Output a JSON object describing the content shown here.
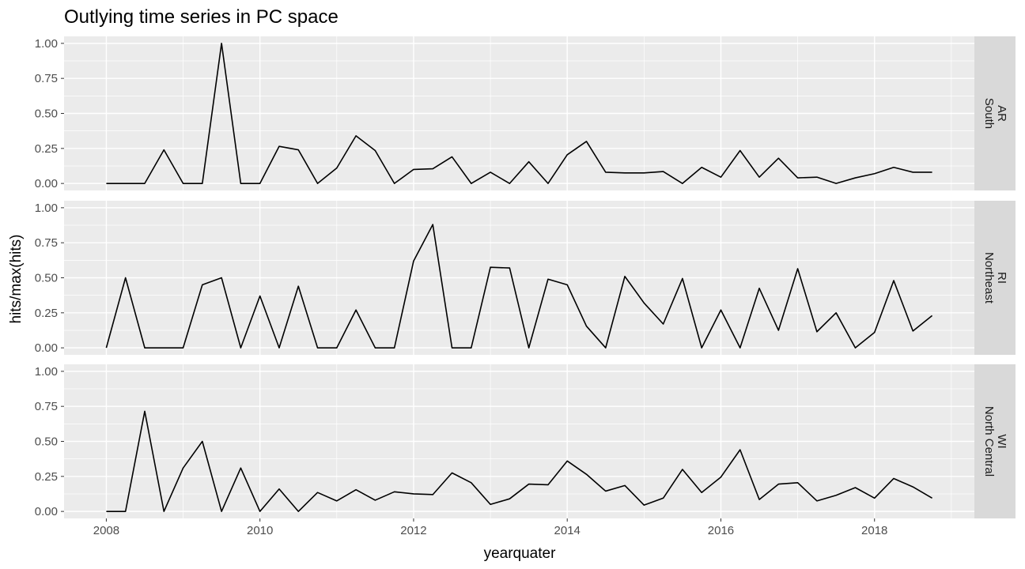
{
  "chart_data": {
    "type": "line",
    "title": "Outlying time series in PC space",
    "xlabel": "yearquater",
    "ylabel": "hits/max(hits)",
    "xlim": [
      2007.45,
      2019.3
    ],
    "ylim": [
      -0.05,
      1.05
    ],
    "x_ticks": [
      2008,
      2010,
      2012,
      2014,
      2016,
      2018
    ],
    "y_ticks": [
      0,
      0.25,
      0.5,
      0.75,
      1
    ],
    "y_tick_labels": [
      "0.00",
      "0.25",
      "0.50",
      "0.75",
      "1.00"
    ],
    "grid": true,
    "x": [
      2008,
      2008.25,
      2008.5,
      2008.75,
      2009,
      2009.25,
      2009.5,
      2009.75,
      2010,
      2010.25,
      2010.5,
      2010.75,
      2011,
      2011.25,
      2011.5,
      2011.75,
      2012,
      2012.25,
      2012.5,
      2012.75,
      2013,
      2013.25,
      2013.5,
      2013.75,
      2014,
      2014.25,
      2014.5,
      2014.75,
      2015,
      2015.25,
      2015.5,
      2015.75,
      2016,
      2016.25,
      2016.5,
      2016.75,
      2017,
      2017.25,
      2017.5,
      2017.75,
      2018,
      2018.25,
      2018.5,
      2018.75
    ],
    "panels": [
      {
        "strip": [
          "AR",
          "South"
        ],
        "values": [
          0,
          0,
          0,
          0.24,
          0,
          0,
          1.0,
          0,
          0,
          0.265,
          0.24,
          0,
          0.11,
          0.34,
          0.235,
          0,
          0.1,
          0.105,
          0.19,
          0,
          0.08,
          0,
          0.155,
          0,
          0.205,
          0.3,
          0.08,
          0.075,
          0.075,
          0.085,
          0,
          0.115,
          0.045,
          0.235,
          0.045,
          0.18,
          0.04,
          0.045,
          0,
          0.04,
          0.07,
          0.115,
          0.08,
          0.08
        ]
      },
      {
        "strip": [
          "RI",
          "Northeast"
        ],
        "values": [
          0,
          0.5,
          0,
          0,
          0,
          0.45,
          0.5,
          0,
          0.37,
          0,
          0.44,
          0,
          0,
          0.27,
          0,
          0,
          0.62,
          0.88,
          0,
          0,
          0.575,
          0.57,
          0,
          0.49,
          0.45,
          0.155,
          0,
          0.51,
          0.32,
          0.17,
          0.495,
          0,
          0.27,
          0,
          0.425,
          0.125,
          0.565,
          0.115,
          0.25,
          0,
          0.11,
          0.48,
          0.12,
          0.23
        ]
      },
      {
        "strip": [
          "WI",
          "North Central"
        ],
        "values": [
          0,
          0,
          0.715,
          0,
          0.31,
          0.5,
          0,
          0.31,
          0,
          0.16,
          0,
          0.135,
          0.075,
          0.155,
          0.08,
          0.14,
          0.125,
          0.12,
          0.275,
          0.205,
          0.05,
          0.09,
          0.195,
          0.19,
          0.36,
          0.265,
          0.145,
          0.185,
          0.045,
          0.095,
          0.3,
          0.135,
          0.245,
          0.44,
          0.085,
          0.195,
          0.205,
          0.075,
          0.115,
          0.17,
          0.095,
          0.235,
          0.175,
          0.095
        ]
      }
    ]
  }
}
